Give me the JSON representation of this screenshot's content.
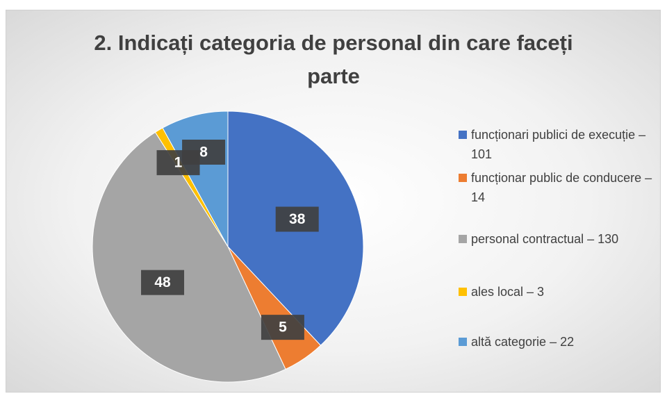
{
  "chart_data": {
    "type": "pie",
    "title": "2. Indicați categoria de personal din care faceți parte",
    "categories": [
      "funcționari publici de execuție – 101",
      "funcționar public de conducere – 14",
      "personal contractual – 130",
      "ales local – 3",
      "altă categorie – 22"
    ],
    "values": [
      38,
      5,
      48,
      1,
      8
    ],
    "colors": [
      "#4472c4",
      "#ed7d31",
      "#a5a5a5",
      "#ffc000",
      "#5b9bd5"
    ],
    "legend": "right"
  }
}
